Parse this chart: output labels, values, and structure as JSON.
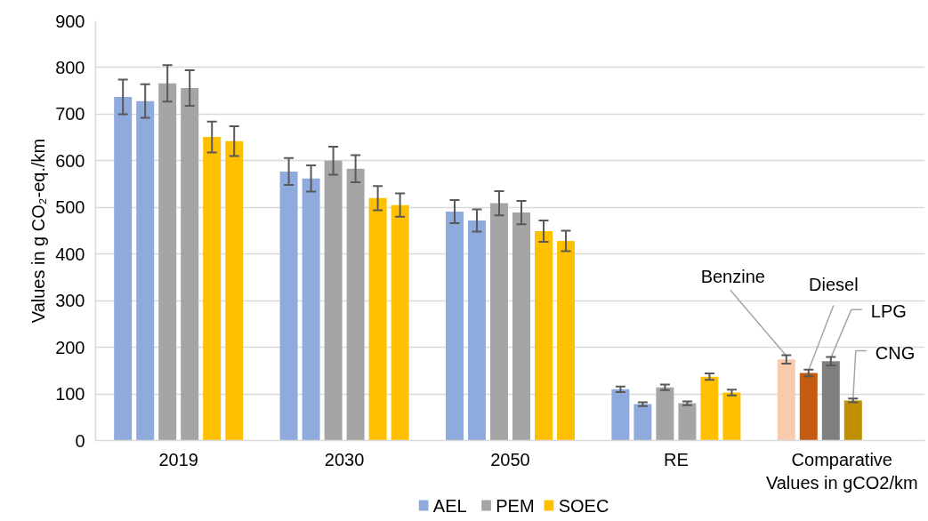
{
  "chart_data": {
    "type": "bar",
    "ylabel": "Values in g CO₂-eq./km",
    "categories": [
      "2019",
      "2030",
      "2050",
      "RE",
      "Comparative Values in gCO2/km"
    ],
    "series": [
      {
        "name": "AEL",
        "color": "#8faadc",
        "colors": [
          "#8faadc",
          "#8faadc",
          "#8faadc",
          "#8faadc",
          "#f8cbad"
        ],
        "values": [
          737,
          577,
          491,
          110,
          174
        ],
        "errors": [
          37,
          29,
          25,
          6,
          9
        ],
        "value_labels": [
          null,
          null,
          null,
          null,
          "Benzine"
        ]
      },
      {
        "colors": [
          "#8faadc",
          "#8faadc",
          "#8faadc",
          "#8faadc",
          "#c55a11"
        ],
        "values": [
          728,
          562,
          472,
          78,
          145
        ],
        "errors": [
          36,
          28,
          24,
          4,
          7
        ],
        "value_labels": [
          null,
          null,
          null,
          null,
          "Diesel"
        ]
      },
      {
        "name": "PEM",
        "color": "#a5a5a5",
        "colors": [
          "#a5a5a5",
          "#a5a5a5",
          "#a5a5a5",
          "#a5a5a5",
          "#7f7f7f"
        ],
        "values": [
          766,
          600,
          509,
          114,
          170
        ],
        "errors": [
          39,
          30,
          26,
          6,
          9
        ],
        "value_labels": [
          null,
          null,
          null,
          null,
          "LPG"
        ]
      },
      {
        "colors": [
          "#a5a5a5",
          "#a5a5a5",
          "#a5a5a5",
          "#a5a5a5",
          "#bf9000"
        ],
        "values": [
          756,
          583,
          489,
          80,
          86
        ],
        "errors": [
          38,
          29,
          25,
          4,
          4
        ],
        "value_labels": [
          null,
          null,
          null,
          null,
          "CNG"
        ]
      },
      {
        "name": "SOEC",
        "color": "#ffc000",
        "values": [
          651,
          520,
          449,
          137,
          null
        ],
        "errors": [
          33,
          26,
          23,
          7,
          null
        ]
      },
      {
        "color": "#ffc000",
        "values": [
          642,
          505,
          428,
          103,
          null
        ],
        "errors": [
          32,
          25,
          22,
          6,
          null
        ]
      }
    ],
    "ylim": [
      0,
      900
    ],
    "yticks": [
      0,
      100,
      200,
      300,
      400,
      500,
      600,
      700,
      800,
      900
    ],
    "grid": "y",
    "legend": "bottom"
  }
}
